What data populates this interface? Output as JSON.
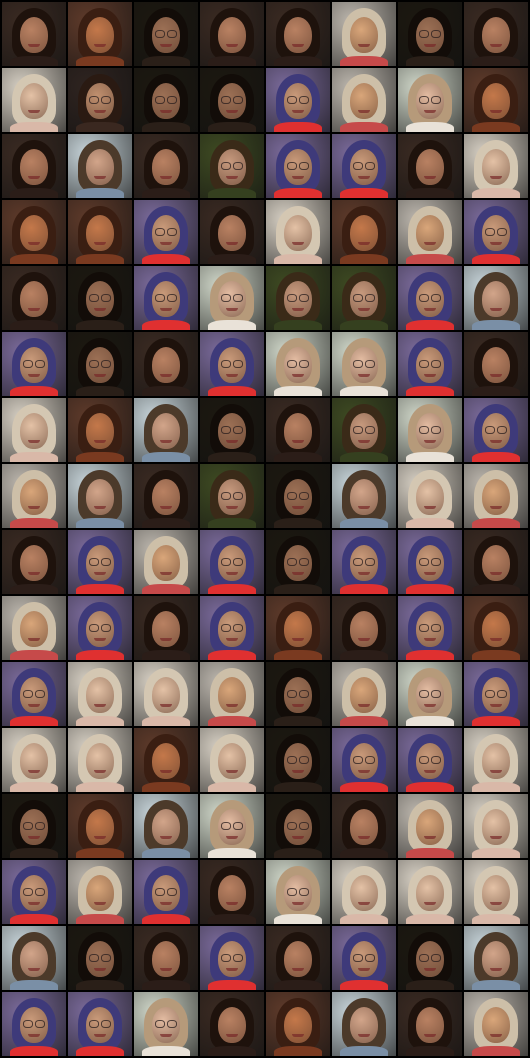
{
  "grid": {
    "rows": 16,
    "cols": 8,
    "palettes": {
      "A": {
        "bg": "#3a2a22",
        "hair": "#1e120c",
        "skin": "#b98162",
        "shirt": "#2b1d18",
        "glasses": false
      },
      "B": {
        "bg": "#2f2420",
        "hair": "#2a1a12",
        "skin": "#c0906f",
        "shirt": "#3a2820",
        "glasses": true
      },
      "C": {
        "bg": "#1c1810",
        "hair": "#120c08",
        "skin": "#9c7055",
        "shirt": "#2a1f18",
        "glasses": true
      },
      "D": {
        "bg": "#bdb7ae",
        "hair": "#cdbfa8",
        "skin": "#d9a67a",
        "shirt": "#c64a4a",
        "glasses": false
      },
      "E": {
        "bg": "#c7d4d9",
        "hair": "#4c3a2a",
        "skin": "#d2a58a",
        "shirt": "#7a8fa6",
        "glasses": false
      },
      "F": {
        "bg": "#7a6a9a",
        "hair": "#3e3a7a",
        "skin": "#c99a7a",
        "shirt": "#e03030",
        "glasses": true
      },
      "G": {
        "bg": "#cfd6c8",
        "hair": "#b69a7a",
        "skin": "#e3bca2",
        "shirt": "#e9e2d8",
        "glasses": true
      },
      "H": {
        "bg": "#3e4a22",
        "hair": "#3a2a18",
        "skin": "#c79a7e",
        "shirt": "#35401f",
        "glasses": true
      },
      "I": {
        "bg": "#d7d0c4",
        "hair": "#d4c7b2",
        "skin": "#e4c2a6",
        "shirt": "#d9b8a8",
        "glasses": false
      },
      "J": {
        "bg": "#5e3a2a",
        "hair": "#3a1e12",
        "skin": "#c4784a",
        "shirt": "#7a3a20",
        "glasses": false
      }
    },
    "tiles": [
      [
        "A",
        "J",
        "C",
        "A",
        "A",
        "D",
        "C",
        "A"
      ],
      [
        "I",
        "B",
        "C",
        "C",
        "F",
        "D",
        "G",
        "J"
      ],
      [
        "A",
        "E",
        "A",
        "H",
        "F",
        "F",
        "A",
        "I"
      ],
      [
        "J",
        "J",
        "F",
        "A",
        "I",
        "J",
        "D",
        "F"
      ],
      [
        "A",
        "C",
        "F",
        "G",
        "H",
        "H",
        "F",
        "E"
      ],
      [
        "F",
        "C",
        "A",
        "F",
        "G",
        "G",
        "F",
        "A"
      ],
      [
        "I",
        "J",
        "E",
        "C",
        "A",
        "H",
        "G",
        "F"
      ],
      [
        "D",
        "E",
        "A",
        "H",
        "C",
        "E",
        "I",
        "D"
      ],
      [
        "A",
        "F",
        "D",
        "F",
        "C",
        "F",
        "F",
        "A"
      ],
      [
        "D",
        "F",
        "A",
        "F",
        "J",
        "A",
        "F",
        "J"
      ],
      [
        "F",
        "I",
        "I",
        "D",
        "C",
        "D",
        "G",
        "F"
      ],
      [
        "I",
        "I",
        "J",
        "I",
        "C",
        "F",
        "F",
        "I"
      ],
      [
        "C",
        "J",
        "E",
        "G",
        "C",
        "A",
        "D",
        "I"
      ],
      [
        "F",
        "D",
        "F",
        "A",
        "G",
        "I",
        "I",
        "I"
      ],
      [
        "E",
        "C",
        "A",
        "F",
        "A",
        "F",
        "C",
        "E"
      ],
      [
        "F",
        "F",
        "G",
        "A",
        "J",
        "E",
        "A",
        "D"
      ]
    ]
  }
}
